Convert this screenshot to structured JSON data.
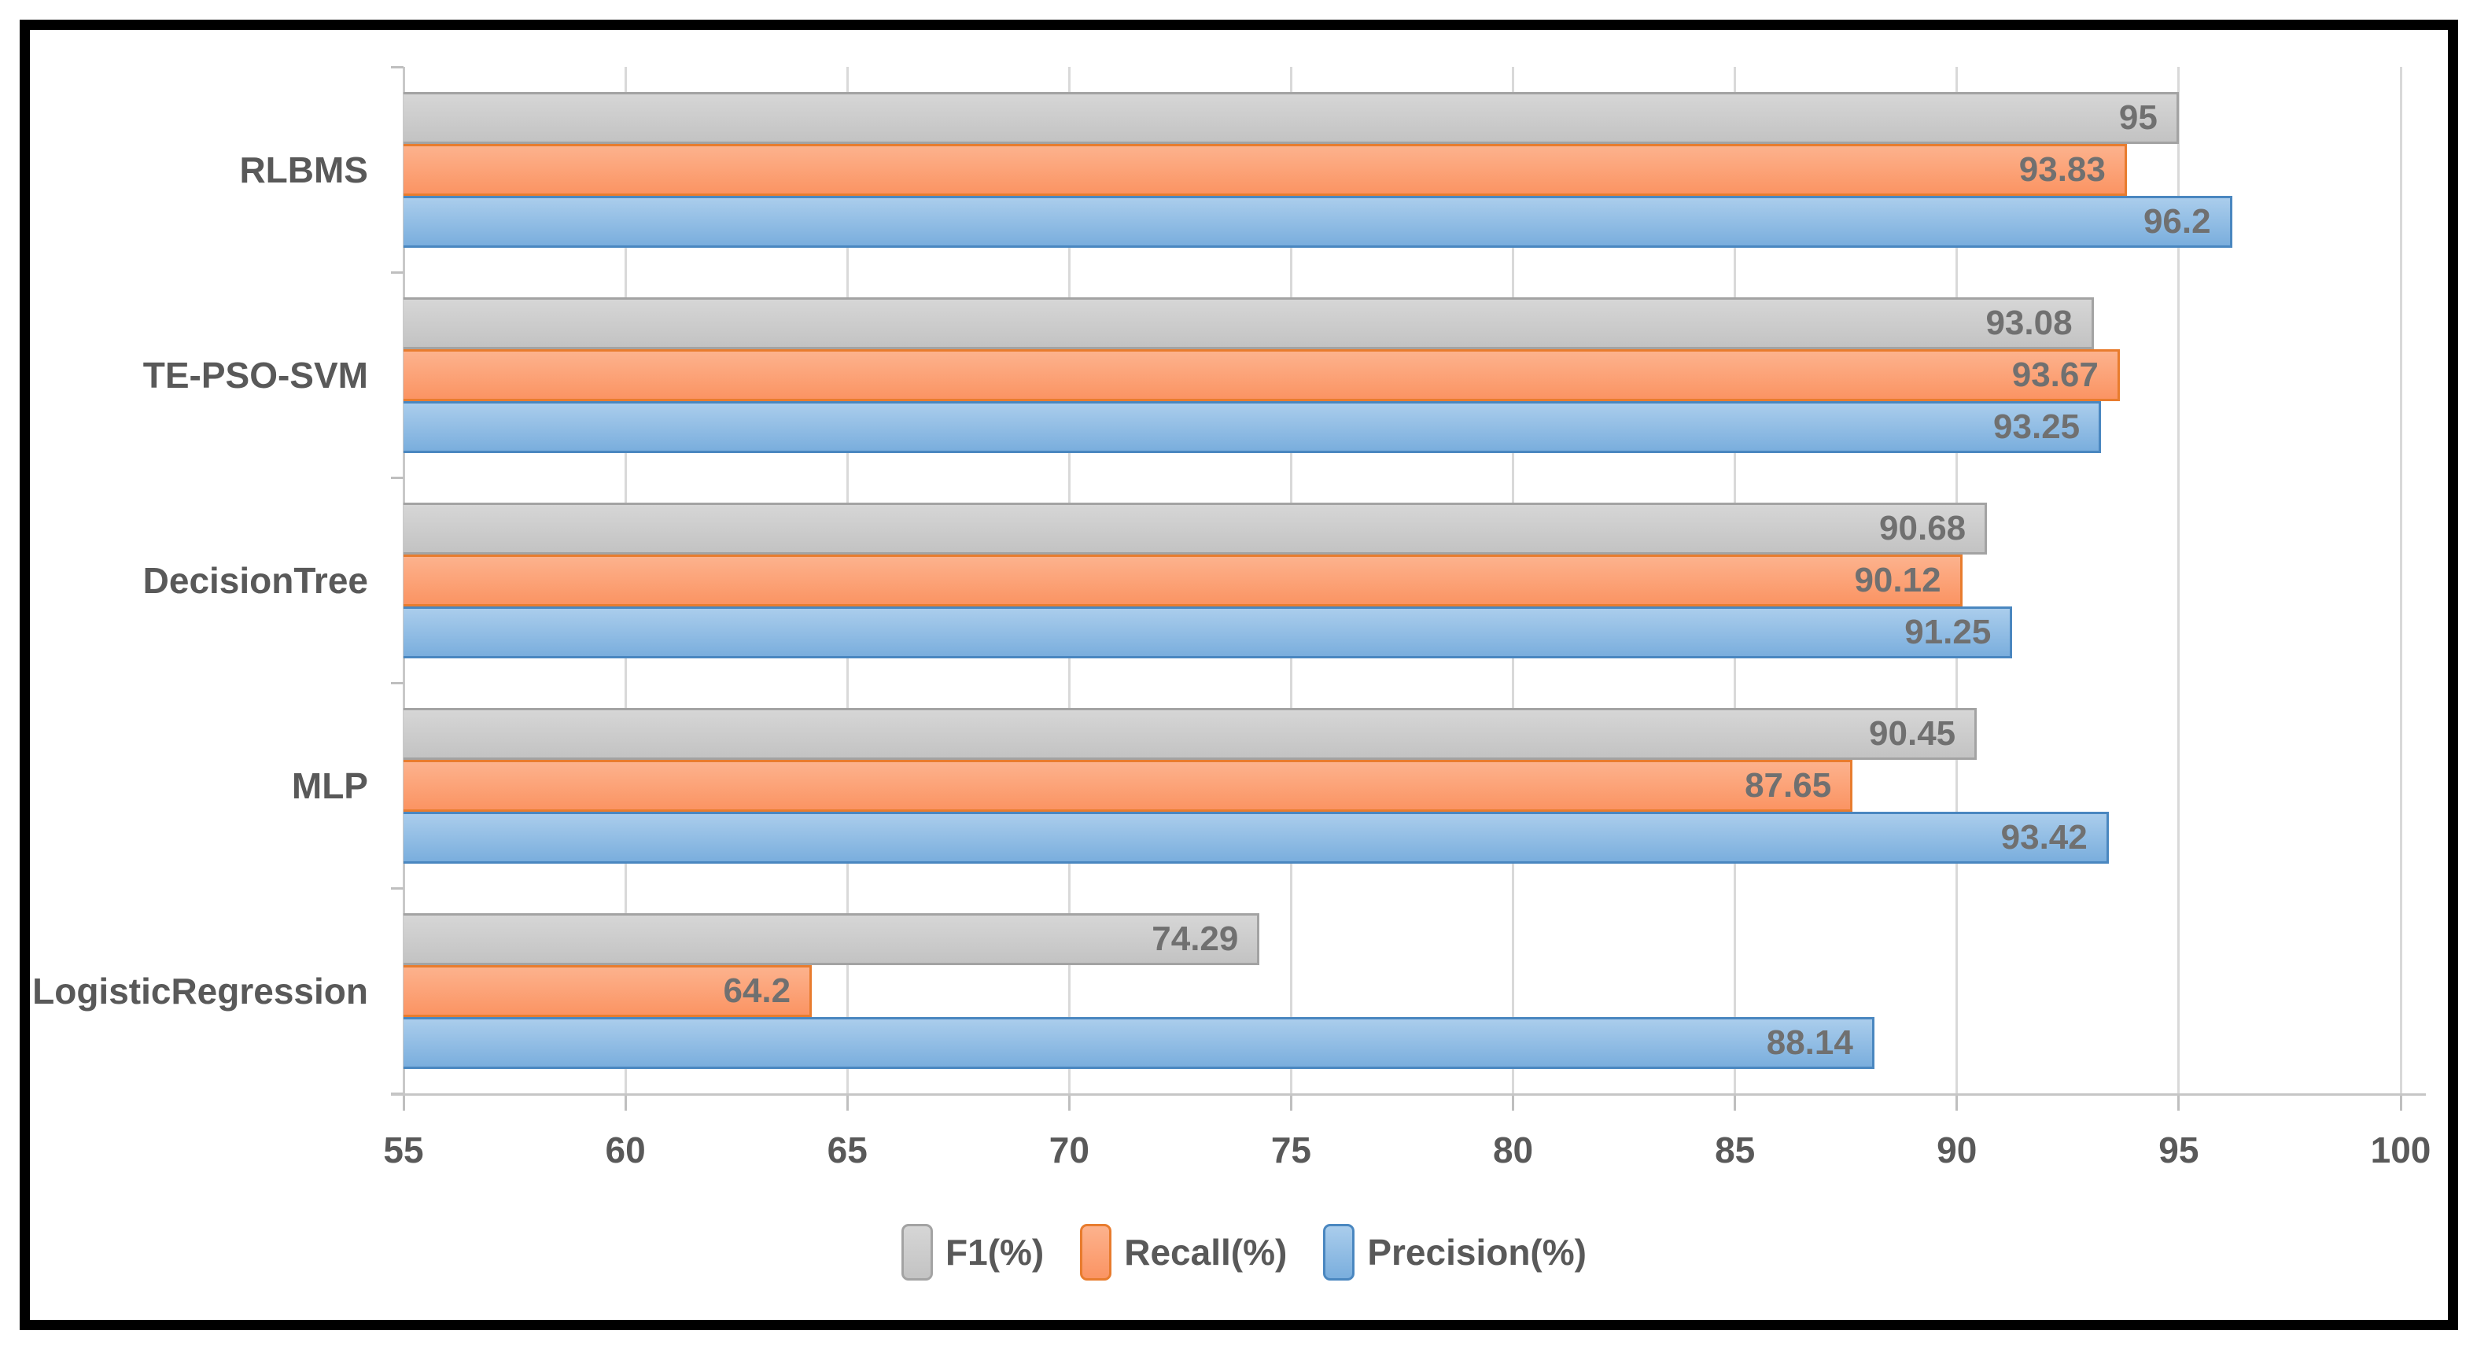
{
  "chart_data": {
    "type": "bar",
    "orientation": "horizontal",
    "title": "",
    "xlabel": "",
    "ylabel": "",
    "categories": [
      "RLBMS",
      "TE-PSO-SVM",
      "DecisionTree",
      "MLP",
      "LogisticRegression"
    ],
    "series": [
      {
        "name": "F1(%)",
        "values": [
          95,
          93.08,
          90.68,
          90.45,
          74.29
        ],
        "labels": [
          "95",
          "93.08",
          "90.68",
          "90.45",
          "74.29"
        ],
        "fill_top": "#d6d6d6",
        "fill_bottom": "#c3c3c3",
        "border": "#a3a3a3"
      },
      {
        "name": "Recall(%)",
        "values": [
          93.83,
          93.67,
          90.12,
          87.65,
          64.2
        ],
        "labels": [
          "93.83",
          "93.67",
          "90.12",
          "87.65",
          "64.2"
        ],
        "fill_top": "#fcb28d",
        "fill_bottom": "#fb9463",
        "border": "#e87c2e"
      },
      {
        "name": "Precision(%)",
        "values": [
          96.2,
          93.25,
          91.25,
          93.42,
          88.14
        ],
        "labels": [
          "96.2",
          "93.25",
          "91.25",
          "93.42",
          "88.14"
        ],
        "fill_top": "#aacdec",
        "fill_bottom": "#7aaedd",
        "border": "#4a87c0"
      }
    ],
    "x_ticks": [
      "55",
      "60",
      "65",
      "70",
      "75",
      "80",
      "85",
      "90",
      "95",
      "100"
    ],
    "xlim": [
      55,
      100
    ],
    "grid": true,
    "legend_position": "bottom",
    "legend_items": [
      "F1(%)",
      "Recall(%)",
      "Precision(%)"
    ],
    "colors": {
      "gridline": "#d9d9d9",
      "axis": "#c6c6c6",
      "category_text": "#595959",
      "tick_text": "#595959",
      "data_label_text": "#707070",
      "frame_border": "#000000",
      "background": "#ffffff"
    }
  }
}
